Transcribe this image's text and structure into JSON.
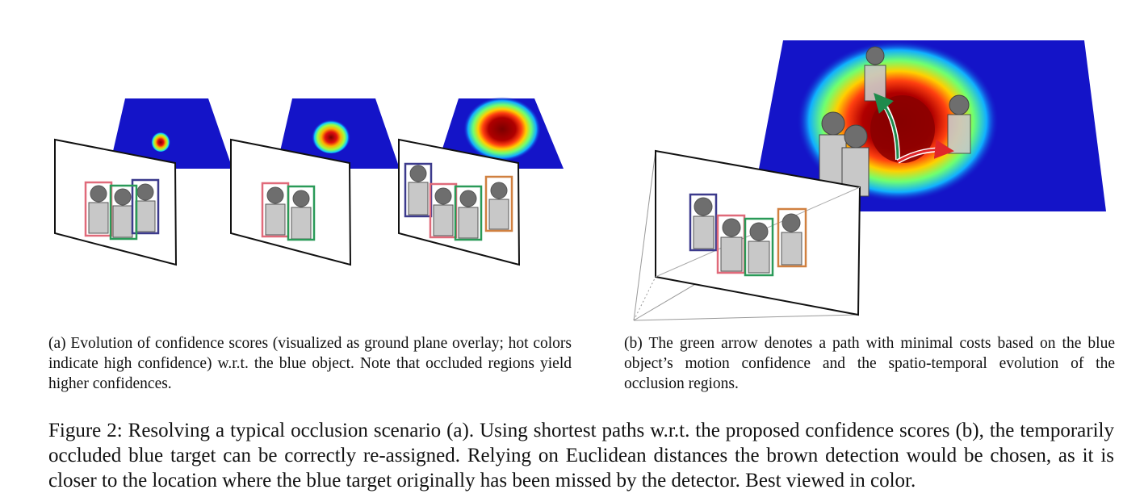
{
  "subcaption_a": "(a) Evolution of confidence scores (visualized as ground plane overlay; hot colors indicate high confidence) w.r.t. the blue object.  Note that occluded regions yield higher confidences.",
  "subcaption_b": "(b) The green arrow denotes a path with minimal costs based on the blue object’s motion confidence and the spatio-temporal evolution of the occlusion regions.",
  "figure_caption": "Figure 2: Resolving a typical occlusion scenario (a).  Using shortest paths w.r.t. the proposed confidence scores (b), the temporarily occluded blue target can be correctly re-assigned. Relying on Euclidean distances the brown detection would be chosen, as it is closer to the location where the blue target originally has been missed by the detector. Best viewed in color.",
  "colors": {
    "heat_background": "#1414c8",
    "box_blue": "#3c3a8c",
    "box_pink": "#e06a7a",
    "box_green": "#2a9a58",
    "box_brown": "#d08040",
    "arrow_green": "#1f8a4c",
    "arrow_red": "#e0262a",
    "person_gray": "#c8c8c8",
    "head_gray": "#6e6e6e"
  }
}
